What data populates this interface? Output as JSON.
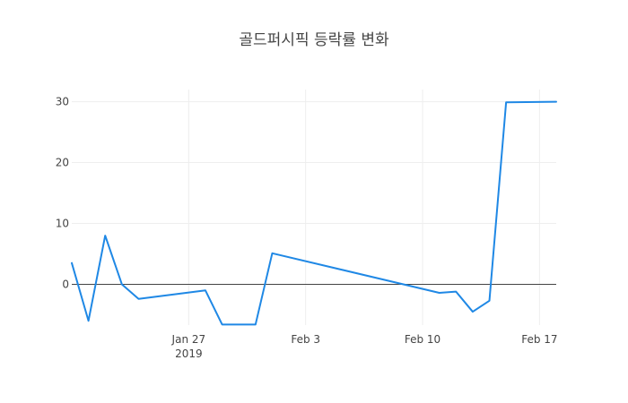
{
  "chart_data": {
    "type": "line",
    "title": "골드퍼시픽 등락률 변화",
    "xlabel": "",
    "ylabel": "",
    "x_tick_labels": [
      {
        "date": "2019-01-27",
        "label": "Jan 27",
        "sublabel": "2019"
      },
      {
        "date": "2019-02-03",
        "label": "Feb 3",
        "sublabel": ""
      },
      {
        "date": "2019-02-10",
        "label": "Feb 10",
        "sublabel": ""
      },
      {
        "date": "2019-02-17",
        "label": "Feb 17",
        "sublabel": ""
      }
    ],
    "xlim": [
      "2019-01-20",
      "2019-02-18"
    ],
    "ylim": [
      -6.7,
      32
    ],
    "y_ticks": [
      0,
      10,
      20,
      30
    ],
    "grid": true,
    "zero_line": true,
    "series": [
      {
        "color": "#1f88e5",
        "points": [
          {
            "x": "2019-01-20",
            "y": 3.5
          },
          {
            "x": "2019-01-21",
            "y": -6.0
          },
          {
            "x": "2019-01-22",
            "y": 8.0
          },
          {
            "x": "2019-01-23",
            "y": 0.0
          },
          {
            "x": "2019-01-24",
            "y": -2.4
          },
          {
            "x": "2019-01-28",
            "y": -1.0
          },
          {
            "x": "2019-01-29",
            "y": -6.6
          },
          {
            "x": "2019-01-31",
            "y": -6.6
          },
          {
            "x": "2019-02-01",
            "y": 5.1
          },
          {
            "x": "2019-02-11",
            "y": -1.4
          },
          {
            "x": "2019-02-12",
            "y": -1.2
          },
          {
            "x": "2019-02-13",
            "y": -4.5
          },
          {
            "x": "2019-02-14",
            "y": -2.7
          },
          {
            "x": "2019-02-15",
            "y": 29.9
          },
          {
            "x": "2019-02-18",
            "y": 30.0
          }
        ]
      }
    ]
  }
}
